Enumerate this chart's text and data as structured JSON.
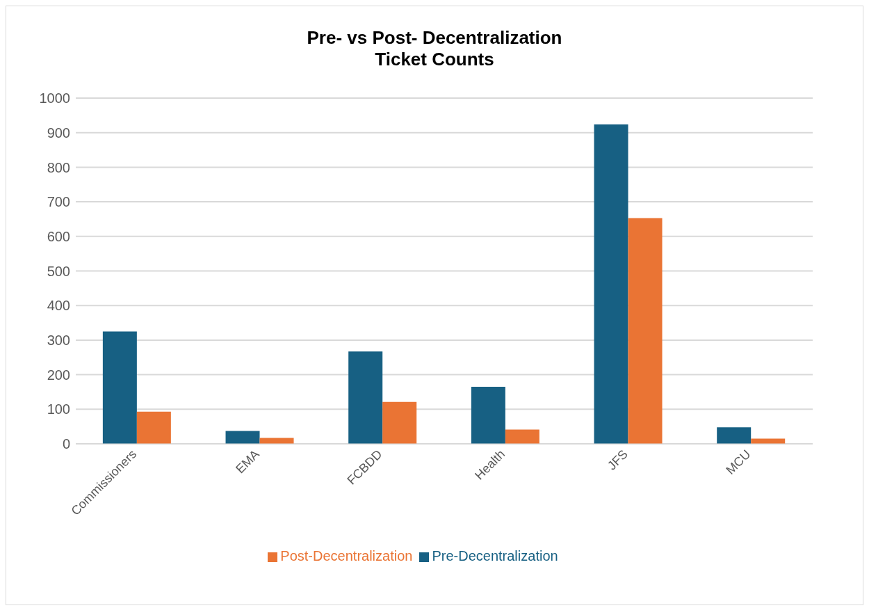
{
  "chart_data": {
    "type": "bar",
    "title": "Pre- vs Post- Decentralization\nTicket Counts",
    "categories": [
      "Commissioners",
      "EMA",
      "FCBDD",
      "Health",
      "JFS",
      "MCU"
    ],
    "series": [
      {
        "name": "Pre-Decentralization",
        "color": "#176083",
        "values": [
          325,
          37,
          267,
          165,
          924,
          48
        ]
      },
      {
        "name": "Post-Decentralization",
        "color": "#ea7434",
        "values": [
          93,
          17,
          121,
          41,
          653,
          15
        ]
      }
    ],
    "ylim": [
      0,
      1000
    ],
    "yticks": [
      0,
      100,
      200,
      300,
      400,
      500,
      600,
      700,
      800,
      900,
      1000
    ],
    "grid": "y",
    "legend": "bottom"
  }
}
